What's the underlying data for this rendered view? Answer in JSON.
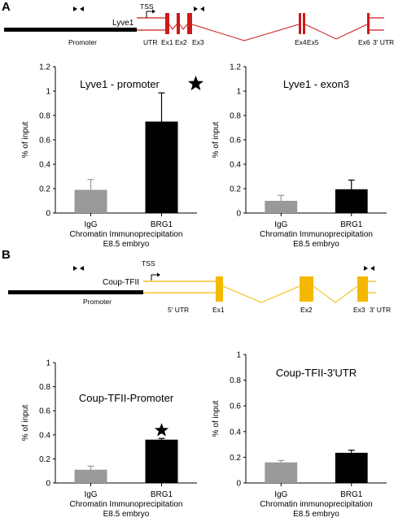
{
  "panels": [
    {
      "letter": "A",
      "gene_diagram": {
        "gene": "Lyve1",
        "tss": "TSS",
        "promoter": "Promoter",
        "region_labels": [
          "UTR",
          "Ex1",
          "Ex2",
          "Ex3",
          "Ex4",
          "Ex5",
          "Ex6",
          "3' UTR"
        ],
        "color": "#cc1a1a"
      }
    },
    {
      "letter": "B",
      "gene_diagram": {
        "gene": "Coup-TFII",
        "tss": "TSS",
        "promoter": "Promoter",
        "region_labels": [
          "5' UTR",
          "Ex1",
          "Ex2",
          "Ex3",
          "3' UTR"
        ],
        "color": "#f5b800"
      }
    }
  ],
  "chart_data": [
    {
      "type": "bar",
      "title": "Lyve1 - promoter",
      "categories": [
        "IgG",
        "BRG1"
      ],
      "values": [
        0.19,
        0.75
      ],
      "errors": [
        0.085,
        0.235
      ],
      "significant": [
        false,
        true
      ],
      "bar_colors": [
        "#999999",
        "#000000"
      ],
      "ylabel": "% of input",
      "xlabel_lines": [
        "Chromatin Immunoprecipitation",
        "E8.5 embryo"
      ],
      "ylim": [
        0,
        1.2
      ],
      "yticks": [
        "0",
        "0.2",
        "0.4",
        "0.6",
        "0.8",
        "1",
        "1.2"
      ]
    },
    {
      "type": "bar",
      "title": "Lyve1 - exon3",
      "categories": [
        "IgG",
        "BRG1"
      ],
      "values": [
        0.1,
        0.195
      ],
      "errors": [
        0.045,
        0.075
      ],
      "significant": [
        false,
        false
      ],
      "bar_colors": [
        "#999999",
        "#000000"
      ],
      "ylabel": "% of input",
      "xlabel_lines": [
        "Chromatin Immunoprecipitation",
        "E8.5 embryo"
      ],
      "ylim": [
        0,
        1.2
      ],
      "yticks": [
        "0",
        "0.2",
        "0.4",
        "0.6",
        "0.8",
        "1",
        "1.2"
      ]
    },
    {
      "type": "bar",
      "title": "Coup-TFII-Promoter",
      "categories": [
        "IgG",
        "BRG1"
      ],
      "values": [
        0.11,
        0.36
      ],
      "errors": [
        0.03,
        0.01
      ],
      "significant": [
        false,
        true
      ],
      "bar_colors": [
        "#999999",
        "#000000"
      ],
      "ylabel": "% of input",
      "xlabel_lines": [
        "Chromatin Immunoprecipitation",
        "E8.5 embryo"
      ],
      "ylim": [
        0,
        1
      ],
      "yticks": [
        "0",
        "0.2",
        "0.4",
        "0.6",
        "0.8",
        "1"
      ]
    },
    {
      "type": "bar",
      "title": "Coup-TFII-3'UTR",
      "categories": [
        "IgG",
        "BRG1"
      ],
      "values": [
        0.16,
        0.235
      ],
      "errors": [
        0.015,
        0.02
      ],
      "significant": [
        false,
        false
      ],
      "bar_colors": [
        "#999999",
        "#000000"
      ],
      "ylabel": "% of input",
      "xlabel_lines": [
        "Chromatin immunoprecipitation",
        "E8.5 embryo"
      ],
      "ylim": [
        0,
        1
      ],
      "yticks": [
        "0",
        "0.2",
        "0.4",
        "0.6",
        "0.8",
        "1"
      ]
    }
  ]
}
